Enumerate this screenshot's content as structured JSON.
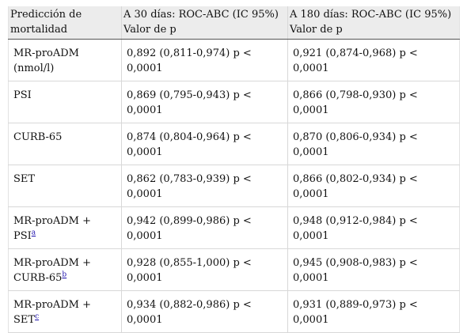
{
  "table": {
    "headers": [
      {
        "line1": "Predicción de",
        "line2": "mortalidad"
      },
      {
        "line1": "A 30 días: ROC-ABC (IC 95%)",
        "line2": "Valor de p"
      },
      {
        "line1": "A 180 días: ROC-ABC (IC 95%)",
        "line2": "Valor de p"
      }
    ],
    "rows": [
      {
        "label1": "MR-proADM",
        "label2": "(nmol/l)",
        "note": "",
        "v30a": "0,892 (0,811-0,974) p <",
        "v30b": "0,0001",
        "v180": "0,921 (0,874-0,968) p < 0,0001"
      },
      {
        "label1": "PSI",
        "label2": "",
        "note": "",
        "v30a": "0,869 (0,795-0,943) p <",
        "v30b": "0,0001",
        "v180": "0,866 (0,798-0,930) p < 0,0001"
      },
      {
        "label1": "CURB-65",
        "label2": "",
        "note": "",
        "v30a": "0,874 (0,804-0,964) p <",
        "v30b": "0,0001",
        "v180": "0,870 (0,806-0,934) p < 0,0001"
      },
      {
        "label1": "SET",
        "label2": "",
        "note": "",
        "v30a": "0,862 (0,783-0,939) p <",
        "v30b": "0,0001",
        "v180": "0,866 (0,802-0,934) p < 0,0001"
      },
      {
        "label1": "MR-proADM +",
        "label2": "PSI",
        "note": "a",
        "v30a": "0,942 (0,899-0,986) p <",
        "v30b": "0,0001",
        "v180": "0,948 (0,912-0,984) p < 0,0001"
      },
      {
        "label1": "MR-proADM +",
        "label2": "CURB-65",
        "note": "b",
        "v30a": "0,928 (0,855-1,000) p <",
        "v30b": "0,0001",
        "v180": "0,945 (0,908-0,983) p < 0,0001"
      },
      {
        "label1": "MR-proADM +",
        "label2": "SET",
        "note": "c",
        "v30a": "0,934 (0,882-0,986) p <",
        "v30b": "0,0001",
        "v180": "0,931 (0,889-0,973) p < 0,0001"
      }
    ]
  }
}
